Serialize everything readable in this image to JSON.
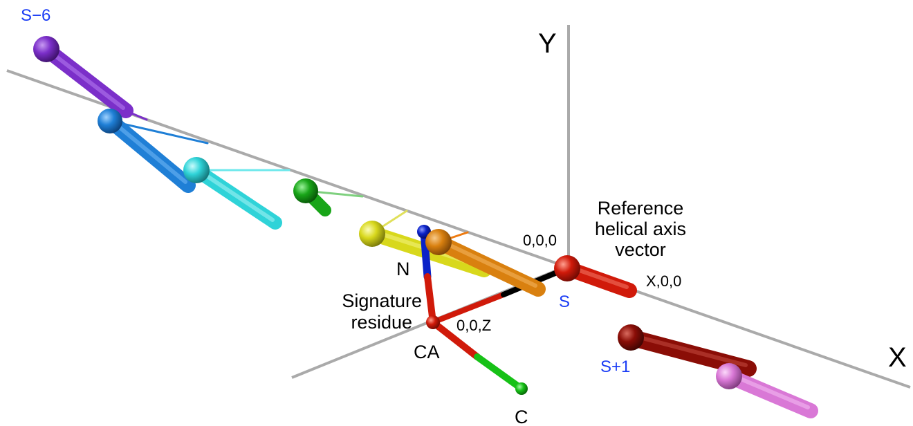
{
  "axes": {
    "y_label": "Y",
    "x_label": "X"
  },
  "labels": {
    "origin": "0,0,0",
    "x_point": "X,0,0",
    "z_point": "0,0,Z",
    "n_atom": "N",
    "ca_atom": "CA",
    "c_atom": "C",
    "signature_line1": "Signature",
    "signature_line2": "residue",
    "reference_line1": "Reference",
    "reference_line2": "helical axis",
    "reference_line3": "vector"
  },
  "residues": {
    "s_minus_6": "S−6",
    "s": "S",
    "s_plus_1": "S+1"
  },
  "colors": {
    "axis_gray": "#aaaaaa",
    "label_blue": "#1a3cf5",
    "purple": "#7b2fc9",
    "blue": "#1f7fd6",
    "cyan": "#2fd3d8",
    "green": "#18a518",
    "yellow": "#d8d81c",
    "orange": "#d9800f",
    "red": "#d01a0a",
    "dark_red": "#8a0d06",
    "pink": "#d978d6",
    "n_blue": "#0a22c8",
    "c_green": "#17c117",
    "black": "#000000"
  }
}
